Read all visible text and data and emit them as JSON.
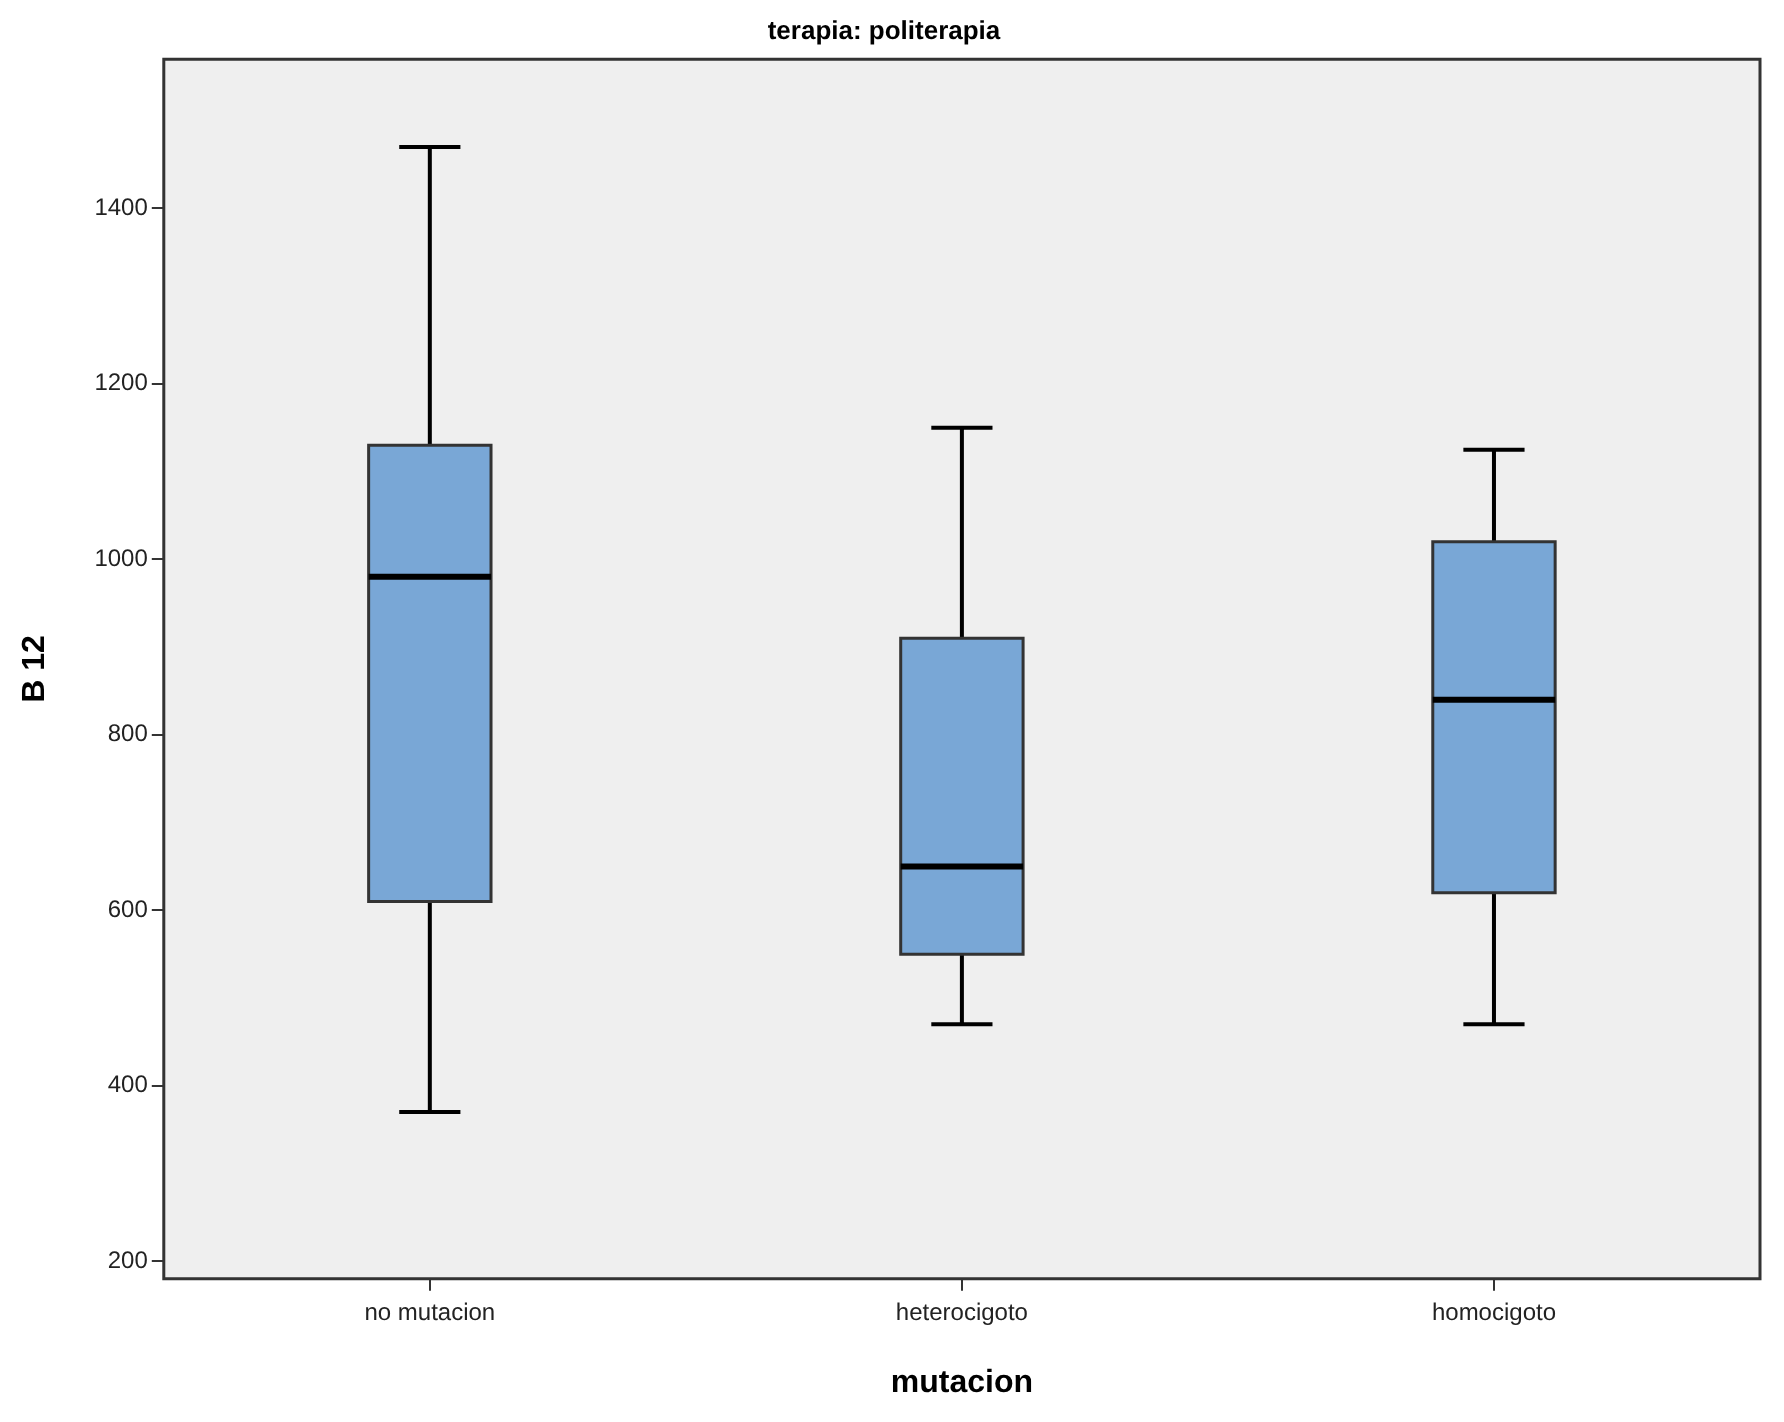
{
  "chart_data": {
    "type": "box",
    "title": "terapia: politerapia",
    "xlabel": "mutacion",
    "ylabel": "B 12",
    "categories": [
      "no mutacion",
      "heterocigoto",
      "homocigoto"
    ],
    "color": "#79a7d6",
    "boxes": [
      {
        "low": 370,
        "q1": 610,
        "median": 980,
        "q3": 1130,
        "high": 1470
      },
      {
        "low": 470,
        "q1": 550,
        "median": 650,
        "q3": 910,
        "high": 1150
      },
      {
        "low": 470,
        "q1": 620,
        "median": 840,
        "q3": 1020,
        "high": 1125
      }
    ],
    "ylim": [
      180,
      1570
    ],
    "yticks": [
      200,
      400,
      600,
      800,
      1000,
      1200,
      1400
    ]
  }
}
